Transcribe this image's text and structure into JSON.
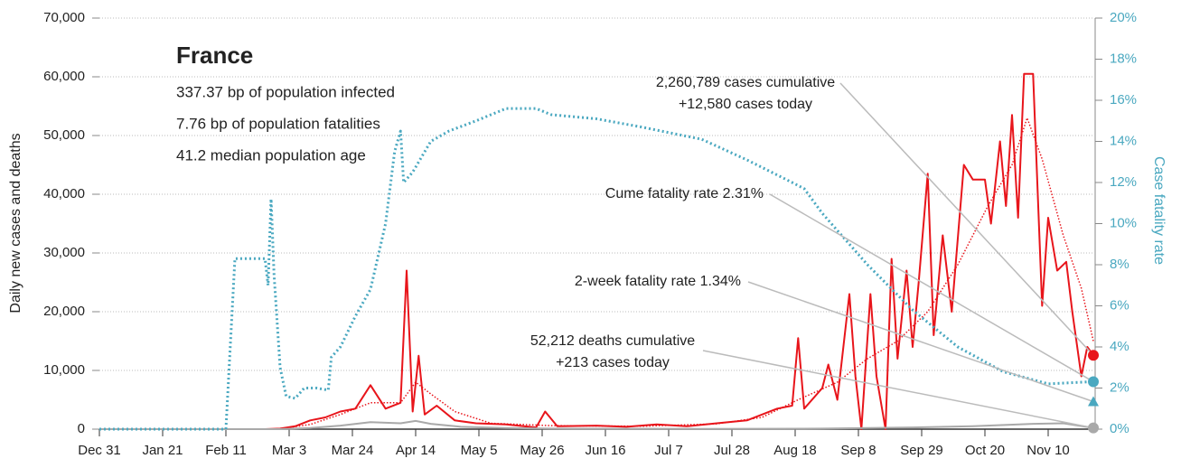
{
  "chart_data": {
    "type": "line",
    "title": "France",
    "subtitle_lines": [
      "337.37 bp of population infected",
      "7.76 bp of population fatalities",
      "41.2 median population age"
    ],
    "y_label": "Daily new cases and deaths",
    "y2_label": "Case fatality rate",
    "xlim": [
      0,
      330
    ],
    "xticks": [
      {
        "value": 0,
        "label": "Dec 31"
      },
      {
        "value": 21,
        "label": "Jan 21"
      },
      {
        "value": 42,
        "label": "Feb 11"
      },
      {
        "value": 63,
        "label": "Mar 3"
      },
      {
        "value": 84,
        "label": "Mar 24"
      },
      {
        "value": 105,
        "label": "Apr 14"
      },
      {
        "value": 126,
        "label": "May 5"
      },
      {
        "value": 147,
        "label": "May 26"
      },
      {
        "value": 168,
        "label": "Jun 16"
      },
      {
        "value": 189,
        "label": "Jul 7"
      },
      {
        "value": 210,
        "label": "Jul 28"
      },
      {
        "value": 231,
        "label": "Aug 18"
      },
      {
        "value": 252,
        "label": "Sep 8"
      },
      {
        "value": 273,
        "label": "Sep 29"
      },
      {
        "value": 294,
        "label": "Oct 20"
      },
      {
        "value": 315,
        "label": "Nov 10"
      }
    ],
    "ylim": [
      0,
      70000
    ],
    "yticks": [
      0,
      {
        "value": 10000,
        "label": "10,000"
      },
      {
        "value": 20000,
        "label": "20,000"
      },
      {
        "value": 30000,
        "label": "30,000"
      },
      {
        "value": 40000,
        "label": "40,000"
      },
      {
        "value": 50000,
        "label": "50,000"
      },
      {
        "value": 60000,
        "label": "60,000"
      },
      {
        "value": 70000,
        "label": "70,000"
      }
    ],
    "y2lim": [
      0,
      20
    ],
    "y2ticks": [
      {
        "value": 0,
        "label": "0%"
      },
      {
        "value": 2,
        "label": "2%"
      },
      {
        "value": 4,
        "label": "4%"
      },
      {
        "value": 6,
        "label": "6%"
      },
      {
        "value": 8,
        "label": "8%"
      },
      {
        "value": 10,
        "label": "10%"
      },
      {
        "value": 12,
        "label": "12%"
      },
      {
        "value": 14,
        "label": "14%"
      },
      {
        "value": 16,
        "label": "16%"
      },
      {
        "value": 18,
        "label": "18%"
      },
      {
        "value": 20,
        "label": "20%"
      }
    ],
    "grid": true,
    "series": [
      {
        "color": "#e8151b",
        "style": "solid",
        "x": [
          0,
          55,
          60,
          65,
          70,
          75,
          80,
          85,
          90,
          95,
          100,
          102,
          104,
          106,
          108,
          112,
          118,
          125,
          135,
          145,
          148,
          152,
          165,
          175,
          185,
          195,
          205,
          215,
          225,
          230,
          232,
          234,
          240,
          242,
          245,
          249,
          251,
          253,
          256,
          258,
          261,
          263,
          265,
          268,
          270,
          272,
          275,
          277,
          280,
          283,
          287,
          290,
          294,
          296,
          299,
          301,
          303,
          305,
          307,
          310,
          313,
          315,
          318,
          321,
          323,
          326,
          328,
          330
        ],
        "values": [
          0,
          0,
          100,
          500,
          1500,
          2000,
          3000,
          3500,
          7500,
          3500,
          4500,
          27000,
          3000,
          12500,
          2500,
          4000,
          1500,
          1000,
          800,
          300,
          3000,
          500,
          600,
          400,
          800,
          500,
          1000,
          1500,
          3500,
          4000,
          15500,
          3500,
          7000,
          11000,
          5000,
          23000,
          9000,
          0,
          23000,
          9000,
          0,
          29000,
          12000,
          27000,
          14000,
          25000,
          43500,
          16000,
          33000,
          20000,
          45000,
          42500,
          42500,
          35000,
          49000,
          38000,
          53500,
          36000,
          60500,
          60500,
          21000,
          36000,
          27000,
          28500,
          20000,
          9000,
          14000,
          12580
        ]
      },
      {
        "color": "#e8151b",
        "style": "dotted",
        "x": [
          60,
          70,
          80,
          90,
          100,
          105,
          110,
          118,
          130,
          150,
          180,
          205,
          220,
          232,
          245,
          255,
          265,
          275,
          285,
          295,
          303,
          308,
          313,
          320,
          326,
          330
        ],
        "values": [
          50,
          800,
          2500,
          4500,
          4500,
          8000,
          6000,
          3000,
          1000,
          600,
          500,
          900,
          2000,
          5000,
          8000,
          12000,
          15000,
          20000,
          28000,
          38000,
          45000,
          53000,
          46000,
          33000,
          24000,
          15000
        ]
      },
      {
        "color": "#a9a9a9",
        "style": "solid",
        "x": [
          0,
          60,
          70,
          80,
          90,
          100,
          105,
          110,
          120,
          135,
          150,
          200,
          240,
          270,
          290,
          310,
          320,
          330
        ],
        "values": [
          0,
          0,
          200,
          600,
          1200,
          1000,
          1400,
          900,
          400,
          200,
          100,
          50,
          100,
          300,
          500,
          900,
          1000,
          213
        ]
      },
      {
        "color": "#4aa8c0",
        "style": "dotted",
        "axis": "y2",
        "x": [
          0,
          42,
          45,
          55,
          56,
          57,
          58,
          60,
          62,
          65,
          68,
          72,
          76,
          77,
          80,
          85,
          90,
          95,
          98,
          100,
          101,
          104,
          106,
          110,
          116,
          125,
          135,
          145,
          150,
          165,
          180,
          200,
          215,
          230,
          234,
          240,
          255,
          270,
          285,
          300,
          315,
          330
        ],
        "values": [
          0,
          0,
          8.3,
          8.3,
          7,
          11.2,
          7.5,
          3,
          1.6,
          1.5,
          2,
          2,
          1.9,
          3.5,
          4,
          5.5,
          6.8,
          10,
          13.5,
          14.5,
          12,
          12.5,
          13,
          14,
          14.5,
          15,
          15.6,
          15.6,
          15.3,
          15.1,
          14.7,
          14.1,
          13.1,
          12,
          11.7,
          10.5,
          8,
          5.8,
          4,
          2.8,
          2.2,
          2.31
        ]
      }
    ],
    "annotations": [
      {
        "lines": [
          "2,260,789 cases cumulative",
          "+12,580 cases today"
        ]
      },
      {
        "lines": [
          "Cume fatality rate 2.31%"
        ]
      },
      {
        "lines": [
          "2-week fatality rate 1.34%"
        ],
        "value": 1.34,
        "axis": "y2"
      },
      {
        "lines": [
          "52,212 deaths cumulative",
          "+213 cases today"
        ]
      }
    ]
  }
}
